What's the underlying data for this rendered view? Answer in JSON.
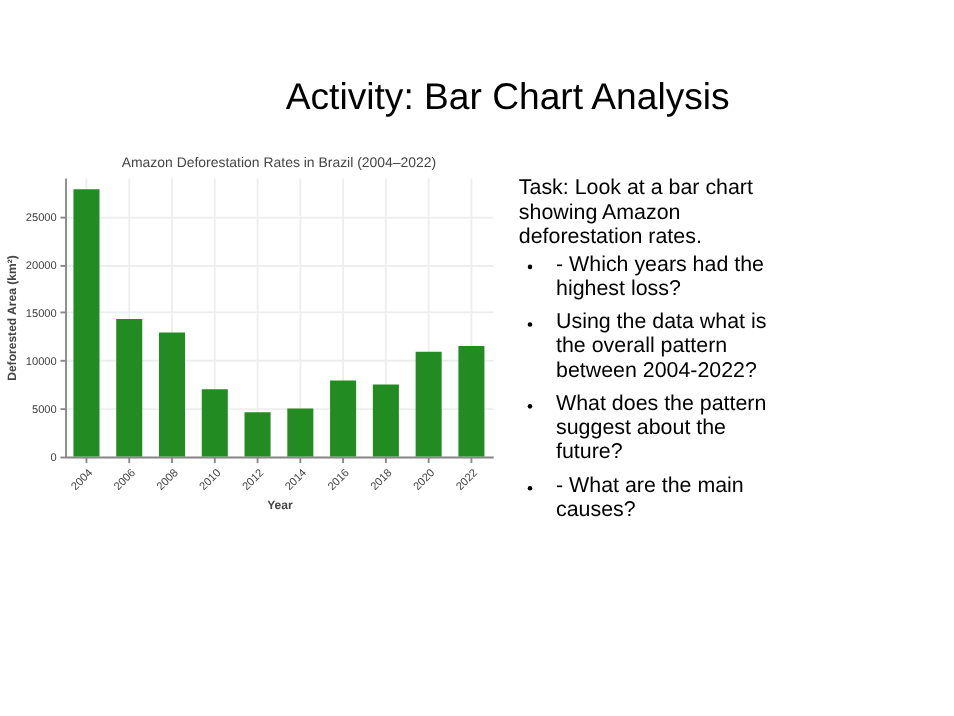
{
  "chart_data": {
    "type": "bar",
    "title": "Amazon Deforestation Rates in Brazil (2004–2022)",
    "xlabel": "Year",
    "ylabel": "Deforested Area (km²)",
    "categories": [
      "2004",
      "2006",
      "2008",
      "2010",
      "2012",
      "2014",
      "2016",
      "2018",
      "2020",
      "2022"
    ],
    "series": [
      {
        "color": "#228b22",
        "values": [
          27800,
          14300,
          12900,
          7000,
          4600,
          5000,
          7900,
          7500,
          10900,
          11500
        ]
      }
    ],
    "ylim": [
      0,
      29000
    ],
    "yticks": [
      0,
      5000,
      10000,
      15000,
      20000,
      25000
    ],
    "grid": true,
    "legend": false,
    "annotations": [
      "Activity: Bar Chart Analysis",
      "Task: Look at a bar chart showing Amazon deforestation rates.",
      "- Which years had the highest loss?",
      "Using the data what is the overall pattern between 2004-2022?",
      "What does the pattern suggest about the future?",
      "- What are the main causes?"
    ]
  }
}
